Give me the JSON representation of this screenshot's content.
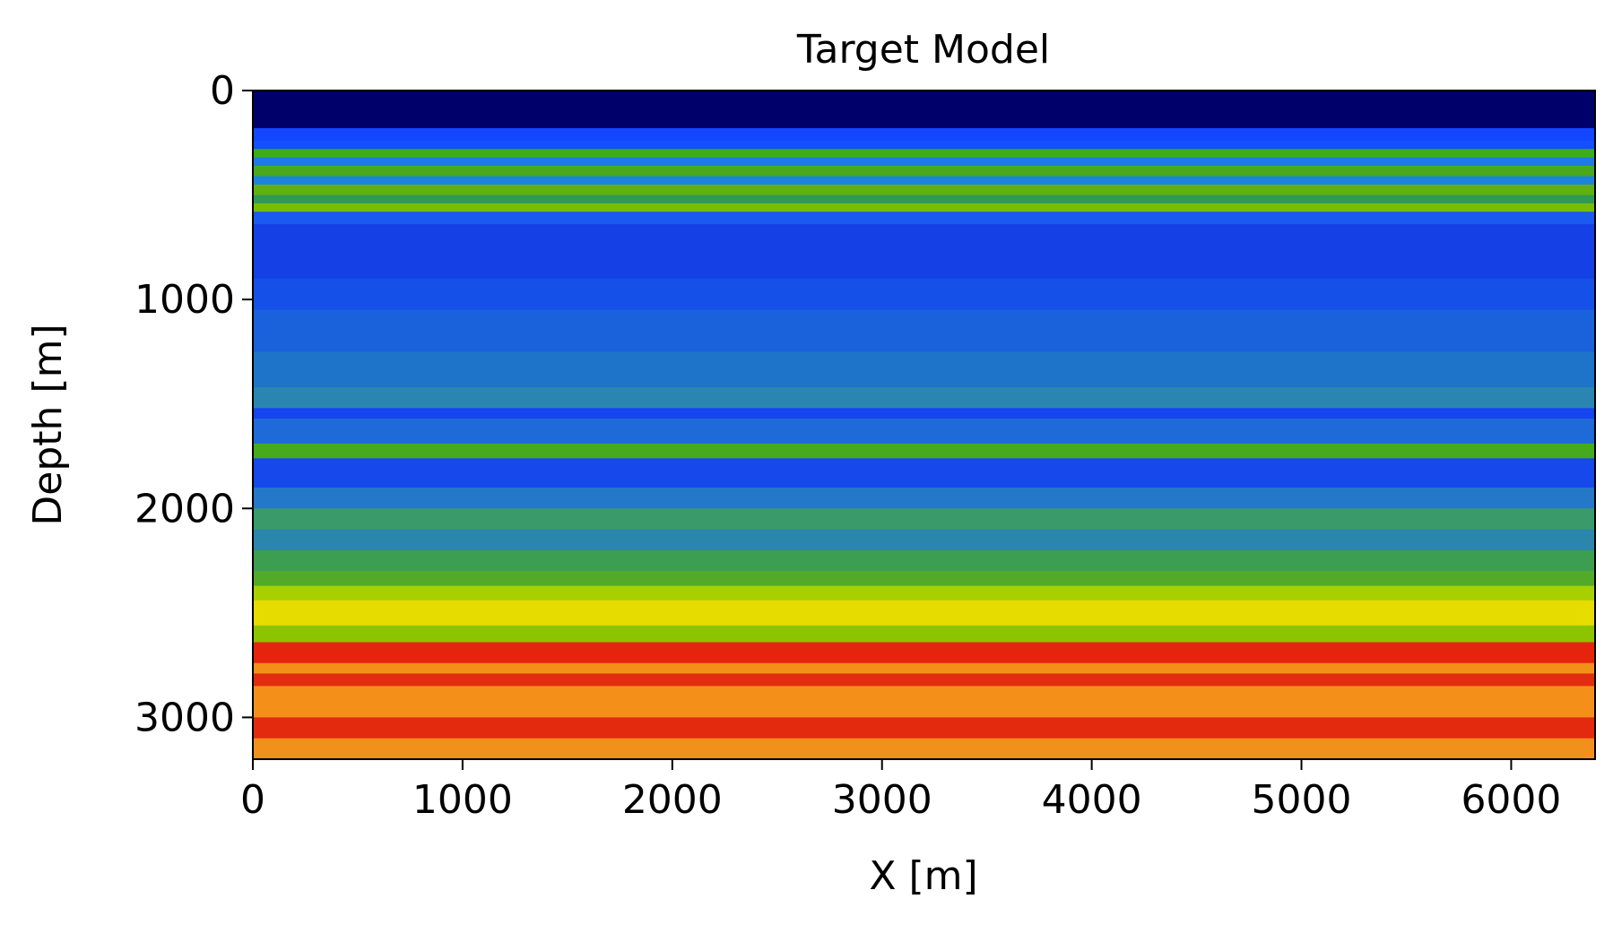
{
  "chart_data": {
    "type": "heatmap",
    "title": "Target Model",
    "xlabel": "X [m]",
    "ylabel": "Depth [m]",
    "xlim": [
      0,
      6400
    ],
    "ylim": [
      3200,
      0
    ],
    "x_ticks": [
      0,
      1000,
      2000,
      3000,
      4000,
      5000,
      6000
    ],
    "y_ticks": [
      0,
      1000,
      2000,
      3000
    ],
    "x_tick_labels": [
      "0",
      "1000",
      "2000",
      "3000",
      "4000",
      "5000",
      "6000"
    ],
    "y_tick_labels": [
      "0",
      "1000",
      "2000",
      "3000"
    ],
    "grid": false,
    "legend": "none",
    "colormap": "jet",
    "layers": [
      {
        "top": 0,
        "bottom": 180,
        "color": "#00006a"
      },
      {
        "top": 180,
        "bottom": 240,
        "color": "#1446ff"
      },
      {
        "top": 240,
        "bottom": 280,
        "color": "#1450ff"
      },
      {
        "top": 280,
        "bottom": 320,
        "color": "#3cae14"
      },
      {
        "top": 320,
        "bottom": 360,
        "color": "#1e7ae6"
      },
      {
        "top": 360,
        "bottom": 410,
        "color": "#4aa81c"
      },
      {
        "top": 410,
        "bottom": 450,
        "color": "#1c84d8"
      },
      {
        "top": 450,
        "bottom": 500,
        "color": "#60b010"
      },
      {
        "top": 500,
        "bottom": 540,
        "color": "#2e9a56"
      },
      {
        "top": 540,
        "bottom": 580,
        "color": "#78bc08"
      },
      {
        "top": 580,
        "bottom": 640,
        "color": "#1a5af0"
      },
      {
        "top": 640,
        "bottom": 900,
        "color": "#1440e6"
      },
      {
        "top": 900,
        "bottom": 1050,
        "color": "#1550e8"
      },
      {
        "top": 1050,
        "bottom": 1250,
        "color": "#1a62dc"
      },
      {
        "top": 1250,
        "bottom": 1420,
        "color": "#1e74c8"
      },
      {
        "top": 1420,
        "bottom": 1520,
        "color": "#2a86b0"
      },
      {
        "top": 1520,
        "bottom": 1570,
        "color": "#1544f0"
      },
      {
        "top": 1570,
        "bottom": 1690,
        "color": "#1e6ad8"
      },
      {
        "top": 1690,
        "bottom": 1760,
        "color": "#46aa1c"
      },
      {
        "top": 1760,
        "bottom": 1900,
        "color": "#1648ec"
      },
      {
        "top": 1900,
        "bottom": 2000,
        "color": "#2478c8"
      },
      {
        "top": 2000,
        "bottom": 2100,
        "color": "#3a9a6a"
      },
      {
        "top": 2100,
        "bottom": 2200,
        "color": "#2a86aa"
      },
      {
        "top": 2200,
        "bottom": 2300,
        "color": "#3c9e50"
      },
      {
        "top": 2300,
        "bottom": 2370,
        "color": "#52aa28"
      },
      {
        "top": 2370,
        "bottom": 2440,
        "color": "#a8d000"
      },
      {
        "top": 2440,
        "bottom": 2560,
        "color": "#e6dc00"
      },
      {
        "top": 2560,
        "bottom": 2640,
        "color": "#8cc400"
      },
      {
        "top": 2640,
        "bottom": 2740,
        "color": "#e6240e"
      },
      {
        "top": 2740,
        "bottom": 2790,
        "color": "#f29018"
      },
      {
        "top": 2790,
        "bottom": 2850,
        "color": "#e22c10"
      },
      {
        "top": 2850,
        "bottom": 3000,
        "color": "#f4901a"
      },
      {
        "top": 3000,
        "bottom": 3100,
        "color": "#e42a0e"
      },
      {
        "top": 3100,
        "bottom": 3200,
        "color": "#f2901c"
      }
    ],
    "colors": {
      "water": "#00006a",
      "frame": "#000000"
    }
  }
}
